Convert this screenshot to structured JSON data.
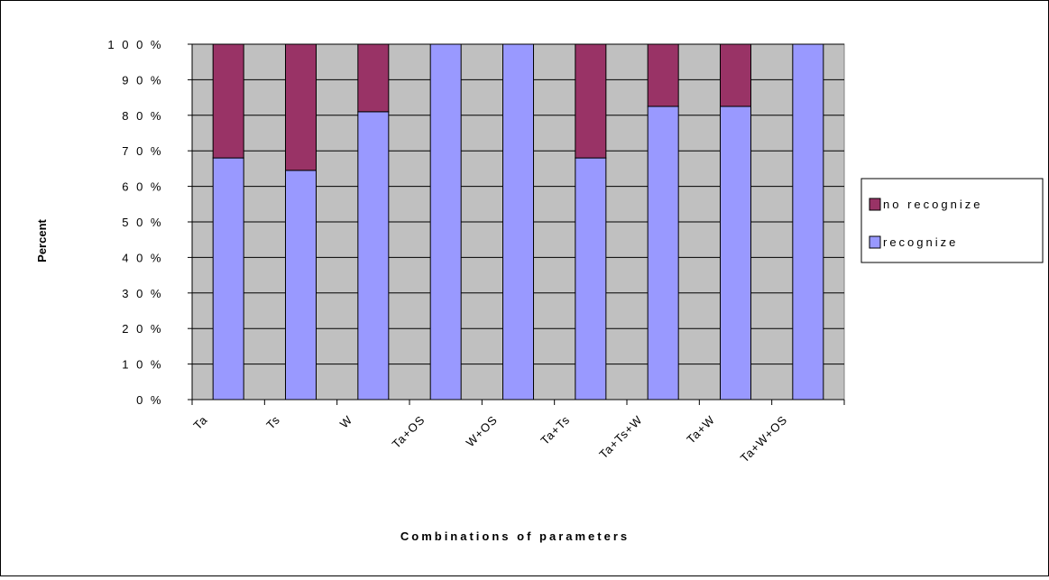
{
  "chart_data": {
    "type": "bar",
    "stacked": true,
    "percent_stacked": true,
    "categories": [
      "Ta",
      "Ts",
      "W",
      "Ta+OS",
      "W+OS",
      "Ta+Ts",
      "Ta+Ts+W",
      "Ta+W",
      "Ta+W+OS"
    ],
    "series": [
      {
        "name": "recognize",
        "values": [
          68,
          64.5,
          81,
          100,
          100,
          68,
          82.5,
          82.5,
          100
        ],
        "color": "#9999ff"
      },
      {
        "name": "no recognize",
        "values": [
          32,
          35.5,
          19,
          0,
          0,
          32,
          17.5,
          17.5,
          0
        ],
        "color": "#993366"
      }
    ],
    "title": "",
    "xlabel": "Combinations of parameters",
    "ylabel": "Percent",
    "ylim": [
      0,
      100
    ],
    "yticks": [
      "0 %",
      "1 0 %",
      "2 0 %",
      "3 0 %",
      "4 0 %",
      "5 0 %",
      "6 0 %",
      "7 0 %",
      "8 0 %",
      "9 0 %",
      "1 0 0 %"
    ],
    "legend": {
      "position": "right",
      "entries": [
        "no recognize",
        "recognize"
      ]
    },
    "grid": true,
    "plot_background": "#c0c0c0"
  }
}
